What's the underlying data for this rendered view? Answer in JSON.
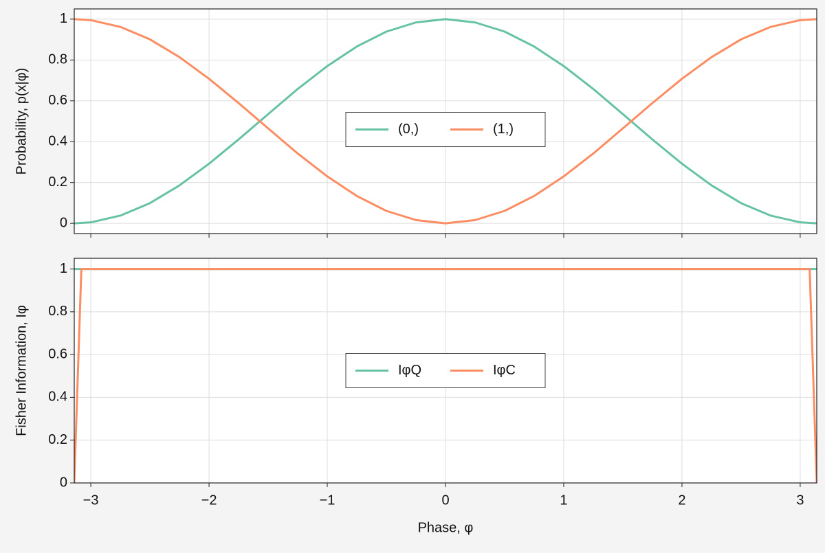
{
  "chart_data": [
    {
      "type": "line",
      "ylabel": "Probability, p(x|φ)",
      "x": [
        -3.14,
        -3,
        -2.75,
        -2.5,
        -2.25,
        -2,
        -1.75,
        -1.5,
        -1.25,
        -1,
        -0.75,
        -0.5,
        -0.25,
        0,
        0.25,
        0.5,
        0.75,
        1,
        1.25,
        1.5,
        1.75,
        2,
        2.25,
        2.5,
        2.75,
        3,
        3.14
      ],
      "series": [
        {
          "name": "(0,)",
          "color": "#66c2a5",
          "values": [
            0,
            0.005,
            0.038,
            0.099,
            0.186,
            0.292,
            0.411,
            0.535,
            0.658,
            0.77,
            0.866,
            0.939,
            0.984,
            1,
            0.984,
            0.939,
            0.866,
            0.77,
            0.658,
            0.535,
            0.411,
            0.292,
            0.186,
            0.099,
            0.038,
            0.005,
            0
          ]
        },
        {
          "name": "(1,)",
          "color": "#fc8d62",
          "values": [
            1,
            0.995,
            0.962,
            0.901,
            0.814,
            0.708,
            0.589,
            0.465,
            0.342,
            0.23,
            0.134,
            0.061,
            0.016,
            0,
            0.016,
            0.061,
            0.134,
            0.23,
            0.342,
            0.465,
            0.589,
            0.708,
            0.814,
            0.901,
            0.962,
            0.995,
            1
          ]
        }
      ],
      "xlim": [
        -3.14,
        3.14
      ],
      "xticks": [
        {
          "value": -3,
          "label": "−3"
        },
        {
          "value": -2,
          "label": "−2"
        },
        {
          "value": -1,
          "label": "−1"
        },
        0,
        1,
        2,
        3
      ],
      "ylim": [
        -0.05,
        1.05
      ],
      "yticks": [
        0,
        0.2,
        0.4,
        0.6,
        0.8,
        1
      ],
      "grid": true,
      "legend": "center"
    },
    {
      "type": "line",
      "ylabel": "Fisher Information, Iφ",
      "xlabel": "Phase, φ",
      "x": [
        -3.14,
        -3.08,
        0,
        3.08,
        3.14
      ],
      "series": [
        {
          "name": "IφQ",
          "color": "#66c2a5",
          "values": [
            1,
            1,
            1,
            1,
            1
          ]
        },
        {
          "name": "IφC",
          "color": "#fc8d62",
          "values": [
            0,
            1,
            1,
            1,
            0
          ]
        }
      ],
      "xlim": [
        -3.14,
        3.14
      ],
      "xticks": [
        {
          "value": -3,
          "label": "−3"
        },
        {
          "value": -2,
          "label": "−2"
        },
        {
          "value": -1,
          "label": "−1"
        },
        0,
        1,
        2,
        3
      ],
      "ylim": [
        0,
        1.05
      ],
      "yticks": [
        0,
        0.2,
        0.4,
        0.6,
        0.8,
        1
      ],
      "grid": true,
      "legend": "center"
    }
  ]
}
